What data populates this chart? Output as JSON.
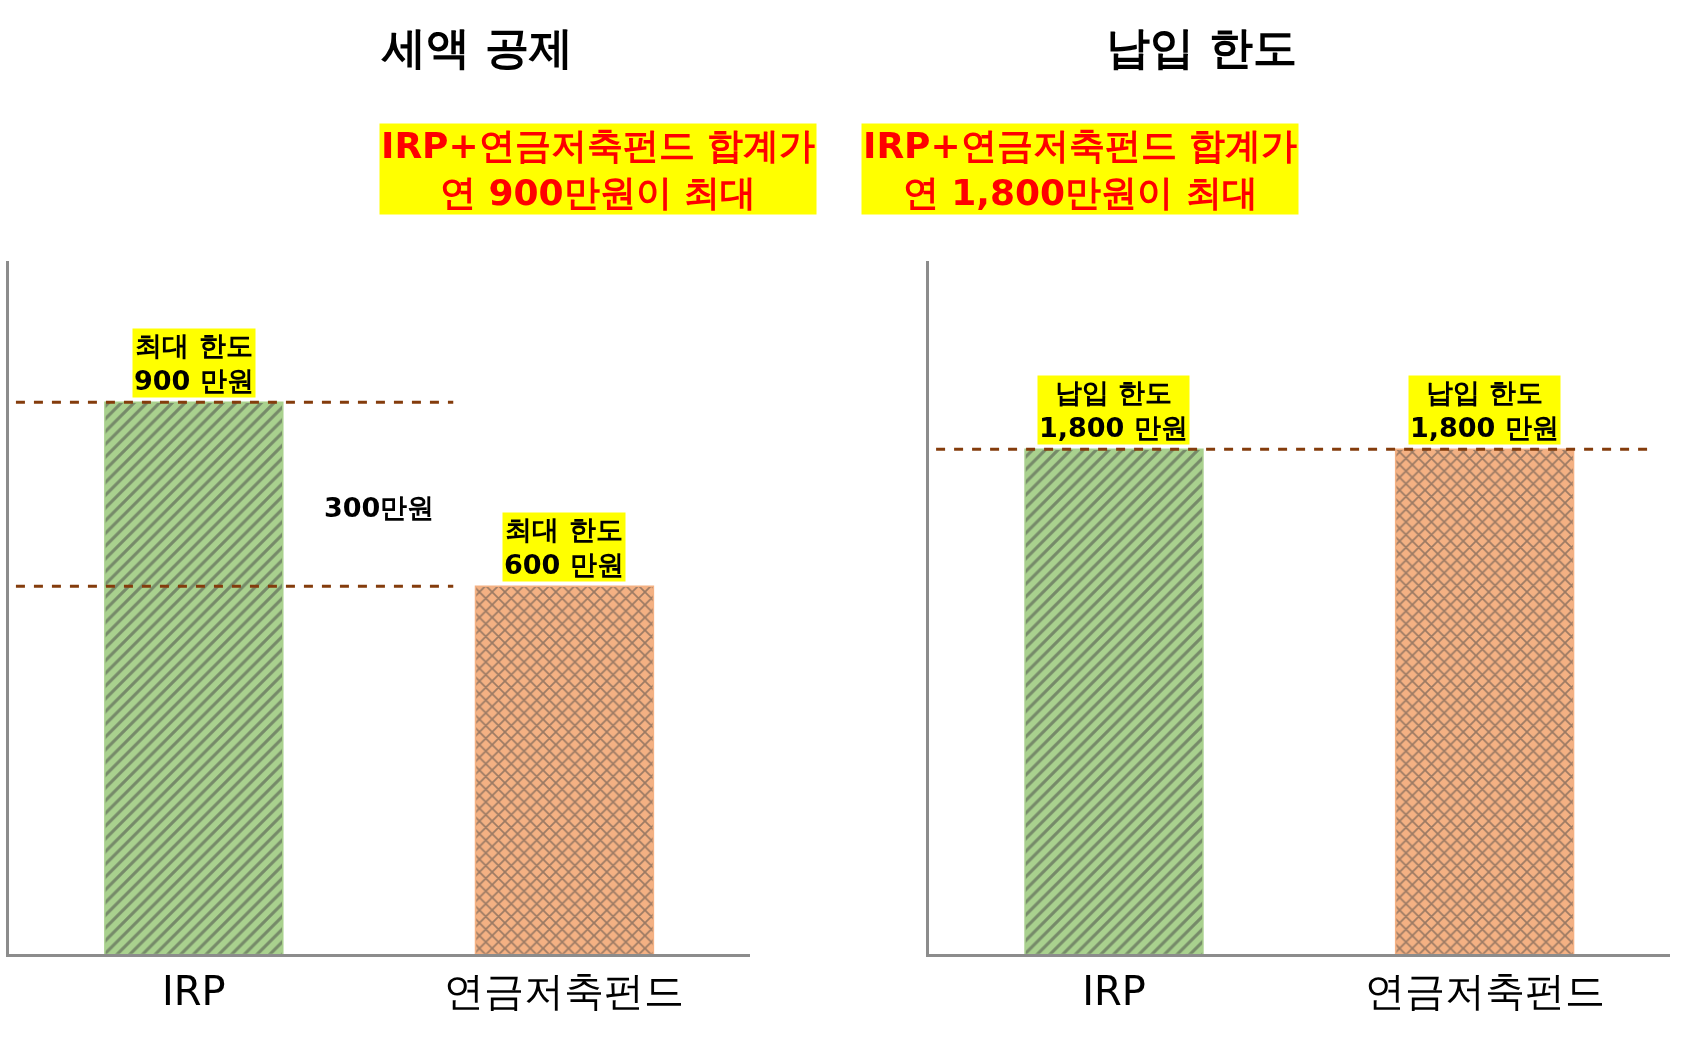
{
  "chart_data": [
    {
      "type": "bar",
      "title": "세액 공제",
      "subtitle": "IRP+연금저축펀드 합계가\n연 900만원이 최대",
      "categories": [
        "IRP",
        "연금저축펀드"
      ],
      "values": [
        900,
        600
      ],
      "colors": [
        "#a9d18e",
        "#f4b183"
      ],
      "value_labels": [
        "최대 한도\n900 만원",
        "최대 한도\n600 만원"
      ],
      "ylim": [
        0,
        1130
      ],
      "ref_lines": [
        {
          "axis": "y",
          "value": 900,
          "color": "#843c0c",
          "line_style": "dashed"
        },
        {
          "axis": "y",
          "value": 600,
          "color": "#843c0c",
          "line_style": "dashed"
        }
      ],
      "annotations": [
        "300만원"
      ],
      "tick_labels": "x"
    },
    {
      "type": "bar",
      "title": "납입 한도",
      "subtitle": "IRP+연금저축펀드 합계가\n연 1,800만원이 최대",
      "categories": [
        "IRP",
        "연금저축펀드"
      ],
      "values": [
        1800,
        1800
      ],
      "colors": [
        "#a9d18e",
        "#f4b183"
      ],
      "value_labels": [
        "납입 한도\n1,800 만원",
        "납입 한도\n1,800 만원"
      ],
      "ylim": [
        0,
        2470
      ],
      "ref_lines": [
        {
          "axis": "y",
          "value": 1800,
          "color": "#843c0c",
          "line_style": "dashed"
        }
      ],
      "tick_labels": "x"
    }
  ]
}
